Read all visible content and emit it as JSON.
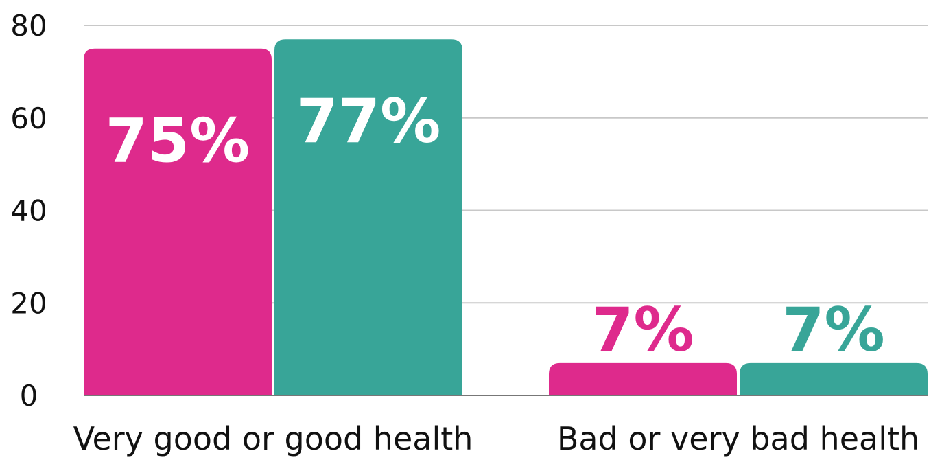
{
  "chart_data": {
    "type": "bar",
    "categories": [
      "Very good or good health",
      "Bad or very bad health"
    ],
    "series": [
      {
        "values": [
          75,
          7
        ],
        "color": "#de2a8c"
      },
      {
        "values": [
          77,
          7
        ],
        "color": "#38a598"
      }
    ],
    "data_labels": [
      [
        "75%",
        "7%"
      ],
      [
        "77%",
        "7%"
      ]
    ],
    "ylim": [
      0,
      80
    ],
    "yticks": [
      "0",
      "20",
      "40",
      "60",
      "80"
    ],
    "grid": true,
    "legend": "none"
  }
}
